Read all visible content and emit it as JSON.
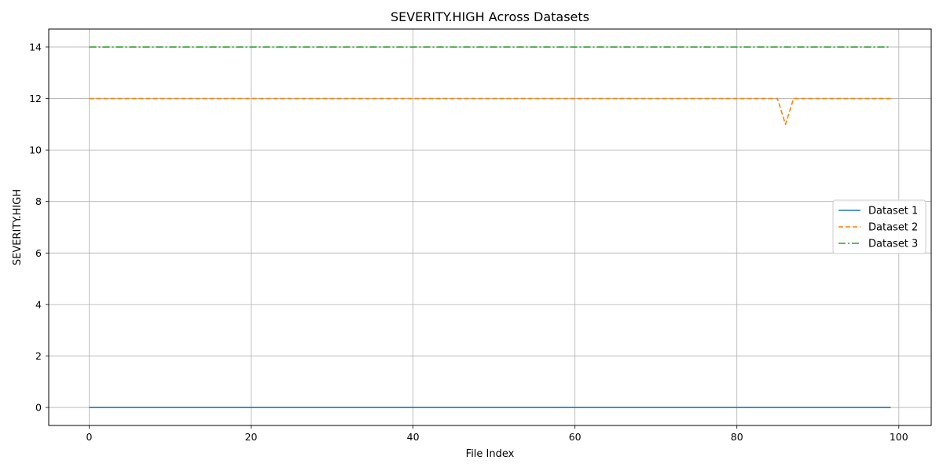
{
  "chart_data": {
    "type": "line",
    "title": "SEVERITY.HIGH Across Datasets",
    "xlabel": "File Index",
    "ylabel": "SEVERITY.HIGH",
    "xlim": [
      -5,
      104
    ],
    "ylim": [
      -0.7,
      14.7
    ],
    "xticks": [
      0,
      20,
      40,
      60,
      80,
      100
    ],
    "yticks": [
      0,
      2,
      4,
      6,
      8,
      10,
      12,
      14
    ],
    "grid": true,
    "legend_position": "center-right",
    "x_range": [
      0,
      99
    ],
    "series": [
      {
        "name": "Dataset 1",
        "color": "#1f77b4",
        "style": "solid",
        "values": [
          [
            0,
            0
          ],
          [
            99,
            0
          ]
        ]
      },
      {
        "name": "Dataset 2",
        "color": "#ff7f0e",
        "style": "dashed",
        "values": [
          [
            0,
            12
          ],
          [
            85,
            12
          ],
          [
            86,
            11
          ],
          [
            87,
            12
          ],
          [
            99,
            12
          ]
        ]
      },
      {
        "name": "Dataset 3",
        "color": "#2ca02c",
        "style": "dashdot",
        "values": [
          [
            0,
            14
          ],
          [
            99,
            14
          ]
        ]
      }
    ]
  }
}
